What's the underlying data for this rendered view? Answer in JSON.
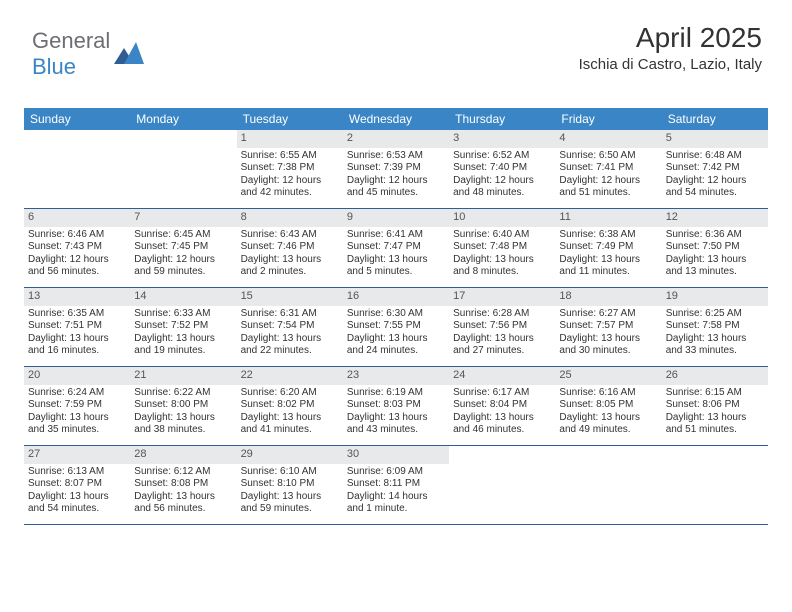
{
  "brand": {
    "text1": "General",
    "text2": "Blue",
    "text1_color": "#6d6e71",
    "text2_color": "#3a85c6"
  },
  "header": {
    "month_title": "April 2025",
    "location": "Ischia di Castro, Lazio, Italy"
  },
  "colors": {
    "header_bg": "#3a85c6",
    "header_fg": "#ffffff",
    "daynum_bg": "#e8e9ea",
    "week_border": "#2f5d94",
    "page_bg": "#ffffff"
  },
  "dow": [
    "Sunday",
    "Monday",
    "Tuesday",
    "Wednesday",
    "Thursday",
    "Friday",
    "Saturday"
  ],
  "weeks": [
    [
      {
        "n": "",
        "sr": "",
        "ss": "",
        "dl": ""
      },
      {
        "n": "",
        "sr": "",
        "ss": "",
        "dl": ""
      },
      {
        "n": "1",
        "sr": "Sunrise: 6:55 AM",
        "ss": "Sunset: 7:38 PM",
        "dl": "Daylight: 12 hours and 42 minutes."
      },
      {
        "n": "2",
        "sr": "Sunrise: 6:53 AM",
        "ss": "Sunset: 7:39 PM",
        "dl": "Daylight: 12 hours and 45 minutes."
      },
      {
        "n": "3",
        "sr": "Sunrise: 6:52 AM",
        "ss": "Sunset: 7:40 PM",
        "dl": "Daylight: 12 hours and 48 minutes."
      },
      {
        "n": "4",
        "sr": "Sunrise: 6:50 AM",
        "ss": "Sunset: 7:41 PM",
        "dl": "Daylight: 12 hours and 51 minutes."
      },
      {
        "n": "5",
        "sr": "Sunrise: 6:48 AM",
        "ss": "Sunset: 7:42 PM",
        "dl": "Daylight: 12 hours and 54 minutes."
      }
    ],
    [
      {
        "n": "6",
        "sr": "Sunrise: 6:46 AM",
        "ss": "Sunset: 7:43 PM",
        "dl": "Daylight: 12 hours and 56 minutes."
      },
      {
        "n": "7",
        "sr": "Sunrise: 6:45 AM",
        "ss": "Sunset: 7:45 PM",
        "dl": "Daylight: 12 hours and 59 minutes."
      },
      {
        "n": "8",
        "sr": "Sunrise: 6:43 AM",
        "ss": "Sunset: 7:46 PM",
        "dl": "Daylight: 13 hours and 2 minutes."
      },
      {
        "n": "9",
        "sr": "Sunrise: 6:41 AM",
        "ss": "Sunset: 7:47 PM",
        "dl": "Daylight: 13 hours and 5 minutes."
      },
      {
        "n": "10",
        "sr": "Sunrise: 6:40 AM",
        "ss": "Sunset: 7:48 PM",
        "dl": "Daylight: 13 hours and 8 minutes."
      },
      {
        "n": "11",
        "sr": "Sunrise: 6:38 AM",
        "ss": "Sunset: 7:49 PM",
        "dl": "Daylight: 13 hours and 11 minutes."
      },
      {
        "n": "12",
        "sr": "Sunrise: 6:36 AM",
        "ss": "Sunset: 7:50 PM",
        "dl": "Daylight: 13 hours and 13 minutes."
      }
    ],
    [
      {
        "n": "13",
        "sr": "Sunrise: 6:35 AM",
        "ss": "Sunset: 7:51 PM",
        "dl": "Daylight: 13 hours and 16 minutes."
      },
      {
        "n": "14",
        "sr": "Sunrise: 6:33 AM",
        "ss": "Sunset: 7:52 PM",
        "dl": "Daylight: 13 hours and 19 minutes."
      },
      {
        "n": "15",
        "sr": "Sunrise: 6:31 AM",
        "ss": "Sunset: 7:54 PM",
        "dl": "Daylight: 13 hours and 22 minutes."
      },
      {
        "n": "16",
        "sr": "Sunrise: 6:30 AM",
        "ss": "Sunset: 7:55 PM",
        "dl": "Daylight: 13 hours and 24 minutes."
      },
      {
        "n": "17",
        "sr": "Sunrise: 6:28 AM",
        "ss": "Sunset: 7:56 PM",
        "dl": "Daylight: 13 hours and 27 minutes."
      },
      {
        "n": "18",
        "sr": "Sunrise: 6:27 AM",
        "ss": "Sunset: 7:57 PM",
        "dl": "Daylight: 13 hours and 30 minutes."
      },
      {
        "n": "19",
        "sr": "Sunrise: 6:25 AM",
        "ss": "Sunset: 7:58 PM",
        "dl": "Daylight: 13 hours and 33 minutes."
      }
    ],
    [
      {
        "n": "20",
        "sr": "Sunrise: 6:24 AM",
        "ss": "Sunset: 7:59 PM",
        "dl": "Daylight: 13 hours and 35 minutes."
      },
      {
        "n": "21",
        "sr": "Sunrise: 6:22 AM",
        "ss": "Sunset: 8:00 PM",
        "dl": "Daylight: 13 hours and 38 minutes."
      },
      {
        "n": "22",
        "sr": "Sunrise: 6:20 AM",
        "ss": "Sunset: 8:02 PM",
        "dl": "Daylight: 13 hours and 41 minutes."
      },
      {
        "n": "23",
        "sr": "Sunrise: 6:19 AM",
        "ss": "Sunset: 8:03 PM",
        "dl": "Daylight: 13 hours and 43 minutes."
      },
      {
        "n": "24",
        "sr": "Sunrise: 6:17 AM",
        "ss": "Sunset: 8:04 PM",
        "dl": "Daylight: 13 hours and 46 minutes."
      },
      {
        "n": "25",
        "sr": "Sunrise: 6:16 AM",
        "ss": "Sunset: 8:05 PM",
        "dl": "Daylight: 13 hours and 49 minutes."
      },
      {
        "n": "26",
        "sr": "Sunrise: 6:15 AM",
        "ss": "Sunset: 8:06 PM",
        "dl": "Daylight: 13 hours and 51 minutes."
      }
    ],
    [
      {
        "n": "27",
        "sr": "Sunrise: 6:13 AM",
        "ss": "Sunset: 8:07 PM",
        "dl": "Daylight: 13 hours and 54 minutes."
      },
      {
        "n": "28",
        "sr": "Sunrise: 6:12 AM",
        "ss": "Sunset: 8:08 PM",
        "dl": "Daylight: 13 hours and 56 minutes."
      },
      {
        "n": "29",
        "sr": "Sunrise: 6:10 AM",
        "ss": "Sunset: 8:10 PM",
        "dl": "Daylight: 13 hours and 59 minutes."
      },
      {
        "n": "30",
        "sr": "Sunrise: 6:09 AM",
        "ss": "Sunset: 8:11 PM",
        "dl": "Daylight: 14 hours and 1 minute."
      },
      {
        "n": "",
        "sr": "",
        "ss": "",
        "dl": ""
      },
      {
        "n": "",
        "sr": "",
        "ss": "",
        "dl": ""
      },
      {
        "n": "",
        "sr": "",
        "ss": "",
        "dl": ""
      }
    ]
  ]
}
